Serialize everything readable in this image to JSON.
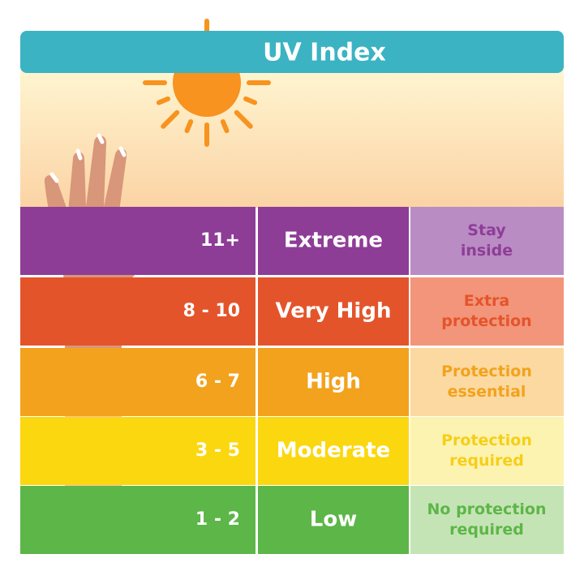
{
  "title": "UV Index",
  "rows": [
    {
      "range": "11+",
      "level": "Extreme",
      "advice": [
        "Stay",
        "inside"
      ]
    },
    {
      "range": "8 - 10",
      "level": "Very High",
      "advice": [
        "Extra",
        "protection"
      ]
    },
    {
      "range": "6 - 7",
      "level": "High",
      "advice": [
        "Protection",
        "essential"
      ]
    },
    {
      "range": "3 - 5",
      "level": "Moderate",
      "advice": [
        "Protection",
        "required"
      ]
    },
    {
      "range": "1 - 2",
      "level": "Low",
      "advice": [
        "No protection",
        "required"
      ]
    }
  ]
}
